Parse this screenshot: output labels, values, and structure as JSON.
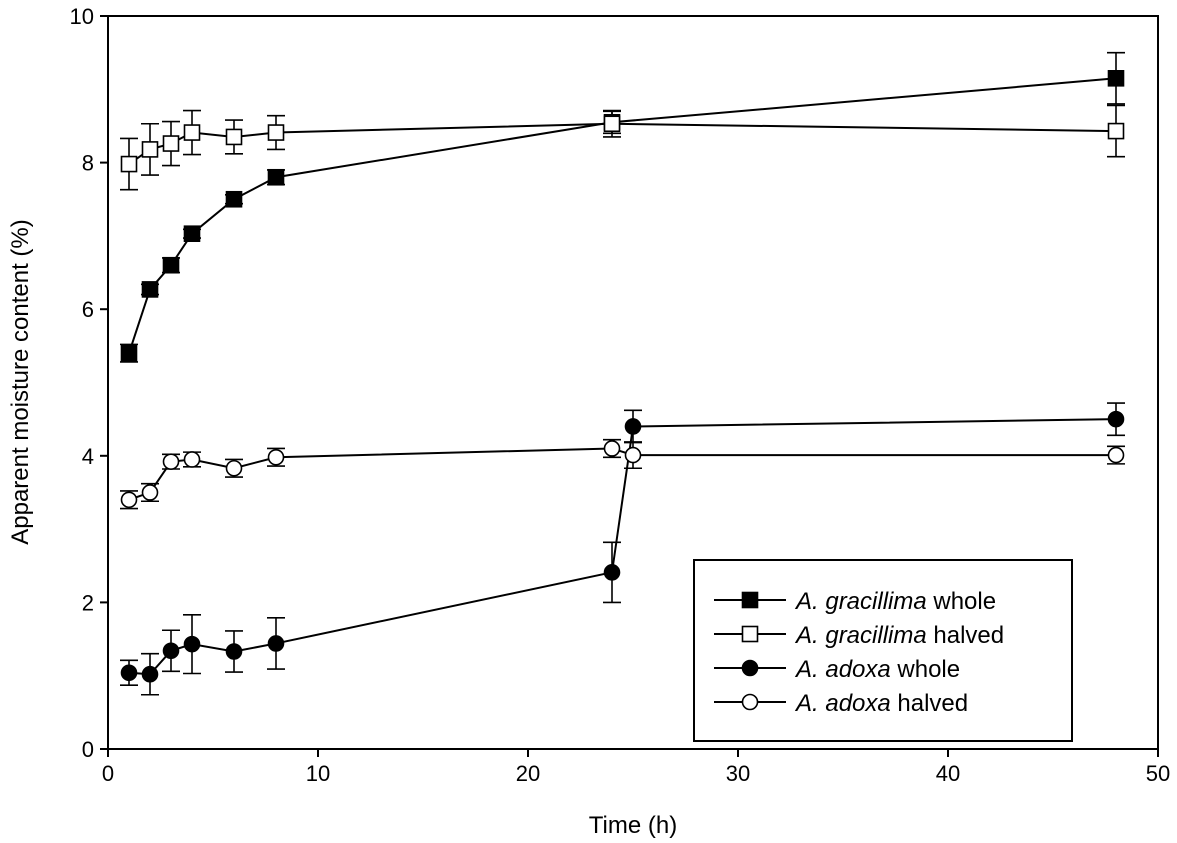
{
  "chart_data": {
    "type": "line",
    "xlabel": "Time (h)",
    "ylabel": "Apparent moisture content (%)",
    "xlim": [
      0,
      50
    ],
    "ylim": [
      0,
      10
    ],
    "xticks": [
      0,
      10,
      20,
      30,
      40,
      50
    ],
    "yticks": [
      0,
      2,
      4,
      6,
      8,
      10
    ],
    "grid": false,
    "legend_position": "bottom-right",
    "series": [
      {
        "name_species": "A. gracillima",
        "name_rest": " whole",
        "marker": "square",
        "fill": "filled",
        "color": "#000000",
        "x": [
          1,
          2,
          3,
          4,
          6,
          8,
          24,
          48
        ],
        "y": [
          5.4,
          6.27,
          6.6,
          7.03,
          7.5,
          7.8,
          8.55,
          9.15
        ],
        "err": [
          0.12,
          0.07,
          0.1,
          0.06,
          0.06,
          0.1,
          0.15,
          0.35
        ]
      },
      {
        "name_species": "A. gracillima",
        "name_rest": " halved",
        "marker": "square",
        "fill": "open",
        "color": "#000000",
        "x": [
          1,
          2,
          3,
          4,
          6,
          8,
          24,
          48
        ],
        "y": [
          7.98,
          8.18,
          8.26,
          8.41,
          8.35,
          8.41,
          8.53,
          8.43
        ],
        "err": [
          0.35,
          0.35,
          0.3,
          0.3,
          0.23,
          0.23,
          0.18,
          0.35
        ]
      },
      {
        "name_species": "A. adoxa",
        "name_rest": " whole",
        "marker": "circle",
        "fill": "filled",
        "color": "#000000",
        "x": [
          1,
          2,
          3,
          4,
          6,
          8,
          24,
          25,
          48
        ],
        "y": [
          1.04,
          1.02,
          1.34,
          1.43,
          1.33,
          1.44,
          2.41,
          4.4,
          4.5
        ],
        "err": [
          0.17,
          0.28,
          0.28,
          0.4,
          0.28,
          0.35,
          0.41,
          0.22,
          0.22
        ]
      },
      {
        "name_species": "A. adoxa",
        "name_rest": " halved",
        "marker": "circle",
        "fill": "open",
        "color": "#000000",
        "x": [
          1,
          2,
          3,
          4,
          6,
          8,
          24,
          25,
          48
        ],
        "y": [
          3.4,
          3.5,
          3.92,
          3.95,
          3.83,
          3.98,
          4.1,
          4.01,
          4.01
        ],
        "err": [
          0.12,
          0.12,
          0.1,
          0.1,
          0.12,
          0.12,
          0.12,
          0.18,
          0.12
        ]
      }
    ]
  }
}
